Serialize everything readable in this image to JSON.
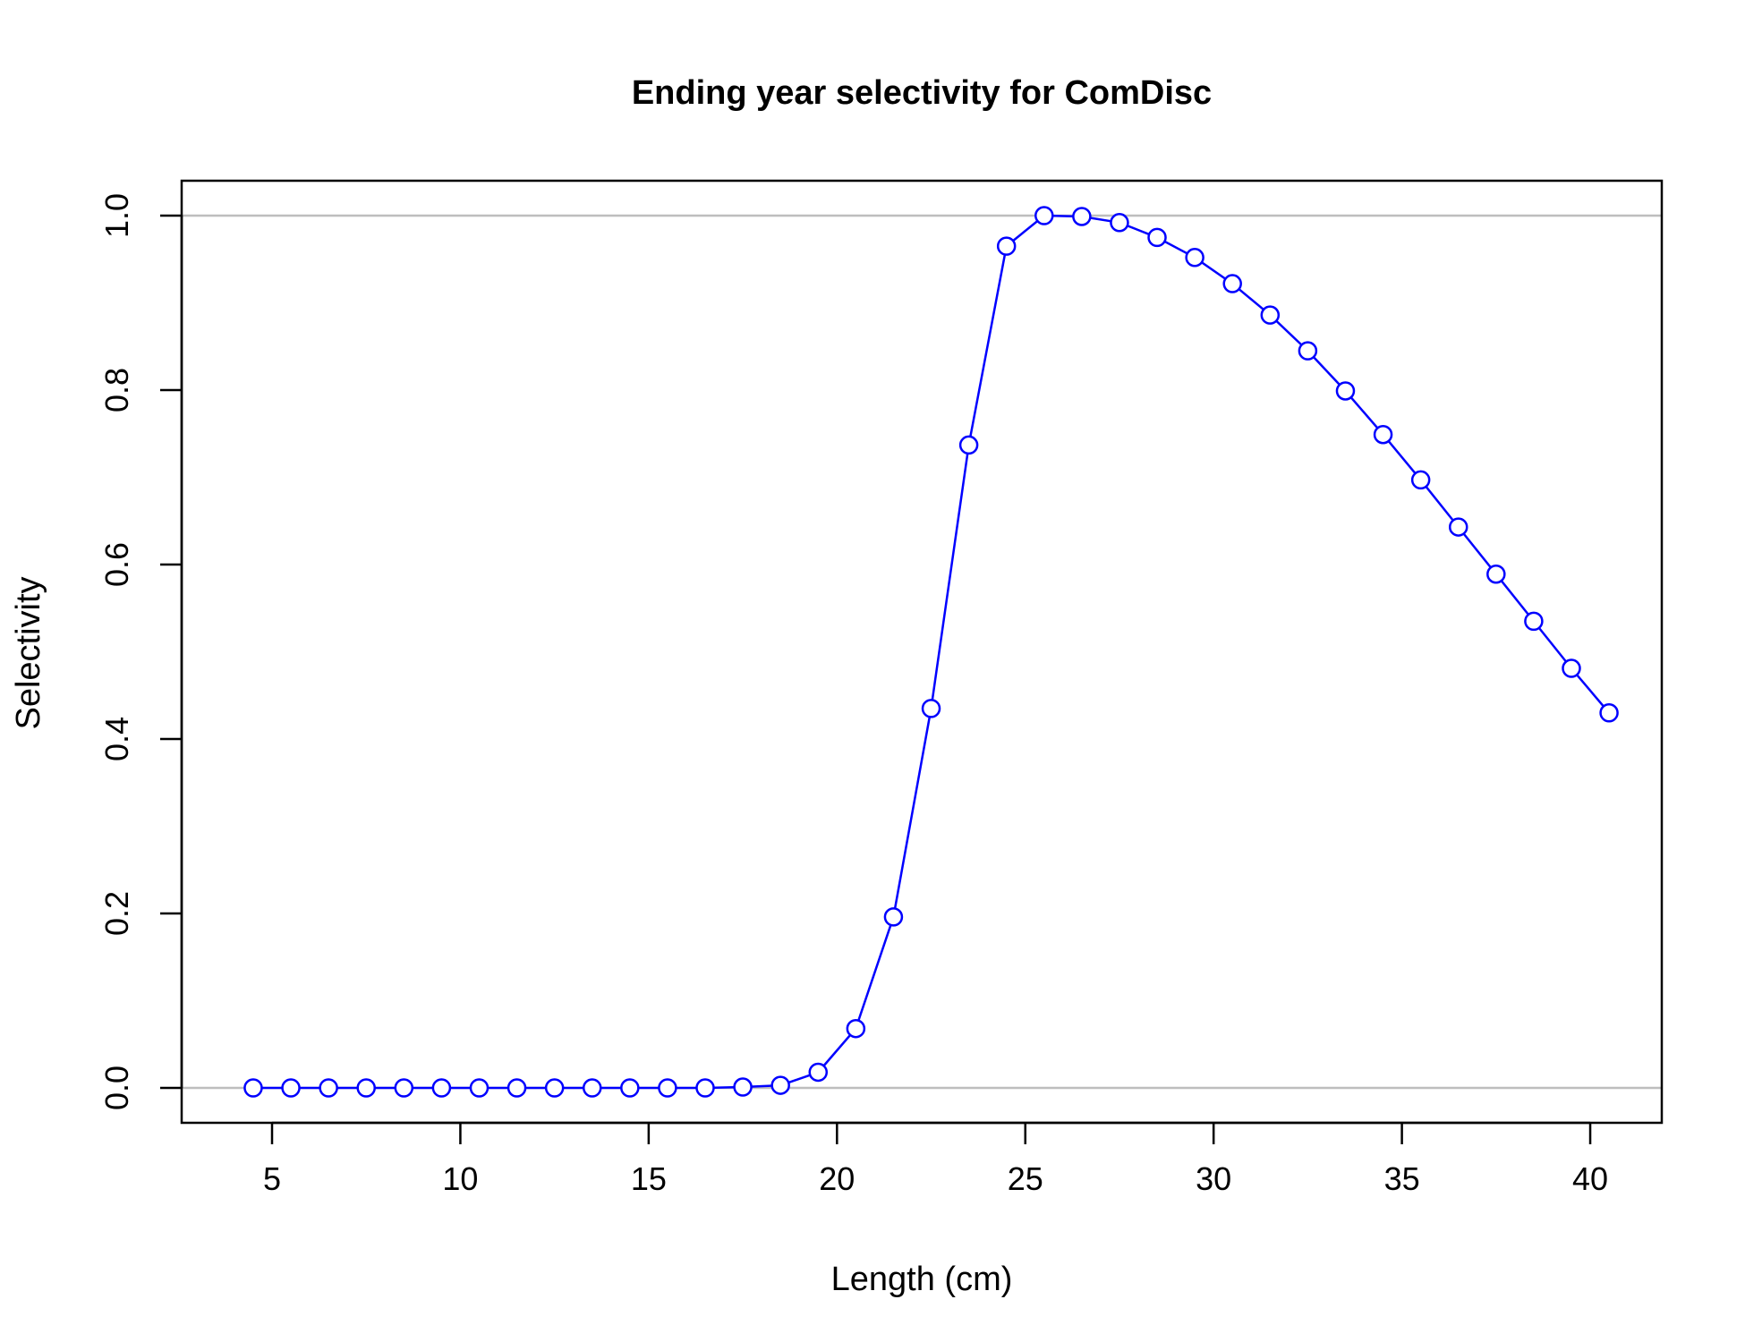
{
  "chart_data": {
    "type": "line",
    "title": "Ending year selectivity for ComDisc",
    "xlabel": "Length (cm)",
    "ylabel": "Selectivity",
    "xlim": [
      2.6,
      41.9
    ],
    "ylim": [
      -0.04,
      1.04
    ],
    "xticks": [
      5,
      10,
      15,
      20,
      25,
      30,
      35,
      40
    ],
    "xtick_labels": [
      "5",
      "10",
      "15",
      "20",
      "25",
      "30",
      "35",
      "40"
    ],
    "yticks": [
      0,
      0.2,
      0.4,
      0.6,
      0.8,
      1.0
    ],
    "ytick_labels": [
      "0.0",
      "0.2",
      "0.4",
      "0.6",
      "0.8",
      "1.0"
    ],
    "reference_lines_y": [
      0,
      1
    ],
    "grid": false,
    "series": [
      {
        "color": "#0000ff",
        "marker": "open-circle",
        "x": [
          4.5,
          5.5,
          6.5,
          7.5,
          8.5,
          9.5,
          10.5,
          11.5,
          12.5,
          13.5,
          14.5,
          15.5,
          16.5,
          17.5,
          18.5,
          19.5,
          20.5,
          21.5,
          22.5,
          23.5,
          24.5,
          25.5,
          26.5,
          27.5,
          28.5,
          29.5,
          30.5,
          31.5,
          32.5,
          33.5,
          34.5,
          35.5,
          36.5,
          37.5,
          38.5,
          39.5,
          40.5
        ],
        "y": [
          0,
          0,
          0,
          0,
          0,
          0,
          0,
          0,
          0,
          0,
          0,
          0,
          0,
          0.001,
          0.003,
          0.018,
          0.068,
          0.196,
          0.435,
          0.737,
          0.965,
          1.0,
          0.999,
          0.992,
          0.975,
          0.952,
          0.922,
          0.886,
          0.845,
          0.799,
          0.749,
          0.697,
          0.643,
          0.589,
          0.535,
          0.481,
          0.43
        ]
      }
    ],
    "colors": {
      "series": "#0000ff",
      "reference": "#bebebe",
      "axis": "#000000"
    }
  }
}
